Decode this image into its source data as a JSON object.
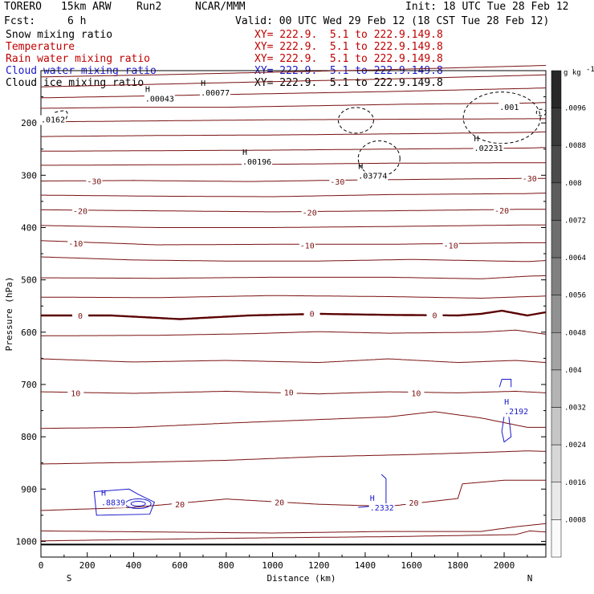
{
  "header": {
    "model": "TORERO",
    "resolution": "15km ARW",
    "run": "Run2",
    "source": "NCAR/MMM",
    "init": "Init: 18 UTC Tue 28 Feb 12",
    "fcst_label": "Fcst:",
    "fcst_value": "6 h",
    "valid": "Valid: 00 UTC Wed 29 Feb 12 (18 CST Tue 28 Feb 12)"
  },
  "legend": [
    {
      "name": "Snow mixing ratio",
      "xy": "XY= 222.9.  5.1 to 222.9.149.8",
      "name_color": "#000000",
      "xy_color": "#c00000"
    },
    {
      "name": "Temperature",
      "xy": "XY= 222.9.  5.1 to 222.9.149.8",
      "name_color": "#c00000",
      "xy_color": "#c00000"
    },
    {
      "name": "Rain water mixing ratio",
      "xy": "XY= 222.9.  5.1 to 222.9.149.8",
      "name_color": "#c00000",
      "xy_color": "#c00000"
    },
    {
      "name": "Cloud water mixing ratio",
      "xy": "XY= 222.9.  5.1 to 222.9.149.8",
      "name_color": "#1a1acc",
      "xy_color": "#1a1acc"
    },
    {
      "name": "Cloud ice mixing ratio",
      "xy": "XY= 222.9.  5.1 to 222.9.149.8",
      "name_color": "#000000",
      "xy_color": "#000000"
    }
  ],
  "colors": {
    "temperature": "#7a1010",
    "temperature_zero": "#5a0000",
    "cloud_water": "#1a1acc",
    "cloud_ice": "#000000",
    "axis": "#000000"
  },
  "chart_data": {
    "type": "contour",
    "xlabel": "Distance (km)",
    "ylabel": "Pressure (hPa)",
    "xlim": [
      0,
      2180
    ],
    "ylim": [
      1030,
      100
    ],
    "x_ticks": [
      0,
      200,
      400,
      600,
      800,
      1000,
      1200,
      1400,
      1600,
      1800,
      2000
    ],
    "y_ticks": [
      200,
      300,
      400,
      500,
      600,
      700,
      800,
      900,
      1000
    ],
    "x_end_left": "S",
    "x_end_right": "N",
    "temperature_isotherms": [
      {
        "pressure_profile": [
          [
            0,
            112
          ],
          [
            500,
            108
          ],
          [
            1000,
            103
          ],
          [
            1500,
            98
          ],
          [
            2100,
            91
          ],
          [
            2180,
            90
          ]
        ]
      },
      {
        "pressure_profile": [
          [
            0,
            131
          ],
          [
            500,
            126
          ],
          [
            1000,
            121
          ],
          [
            1500,
            116
          ],
          [
            2100,
            109
          ],
          [
            2180,
            108
          ]
        ]
      },
      {
        "pressure_profile": [
          [
            0,
            152
          ],
          [
            500,
            148
          ],
          [
            1000,
            144
          ],
          [
            1500,
            140
          ],
          [
            2100,
            134
          ],
          [
            2180,
            133
          ]
        ]
      },
      {
        "pressure_profile": [
          [
            0,
            172
          ],
          [
            400,
            170
          ],
          [
            800,
            170
          ],
          [
            1200,
            167
          ],
          [
            1600,
            164
          ],
          [
            2100,
            162
          ],
          [
            2180,
            161
          ]
        ]
      },
      {
        "pressure_profile": [
          [
            0,
            198
          ],
          [
            500,
            196
          ],
          [
            1000,
            194
          ],
          [
            1500,
            193
          ],
          [
            2100,
            192
          ],
          [
            2180,
            192
          ]
        ]
      },
      {
        "pressure_profile": [
          [
            0,
            226
          ],
          [
            500,
            224
          ],
          [
            1000,
            223
          ],
          [
            1500,
            221
          ],
          [
            2100,
            218
          ],
          [
            2180,
            217
          ]
        ]
      },
      {
        "pressure_profile": [
          [
            0,
            254
          ],
          [
            500,
            253
          ],
          [
            1000,
            252
          ],
          [
            1500,
            250
          ],
          [
            2100,
            248
          ],
          [
            2180,
            247
          ]
        ]
      },
      {
        "pressure_profile": [
          [
            0,
            281
          ],
          [
            500,
            280
          ],
          [
            1000,
            279
          ],
          [
            1500,
            277
          ],
          [
            2100,
            276
          ],
          [
            2180,
            276
          ]
        ]
      },
      {
        "pressure_profile": [
          [
            0,
            311
          ],
          [
            400,
            310
          ],
          [
            900,
            312
          ],
          [
            1200,
            310
          ],
          [
            1600,
            308
          ],
          [
            2100,
            306
          ],
          [
            2180,
            306
          ]
        ],
        "label": "-30",
        "label_at": [
          [
            230,
            311
          ],
          [
            1280,
            312
          ],
          [
            2110,
            306
          ]
        ]
      },
      {
        "pressure_profile": [
          [
            0,
            338
          ],
          [
            500,
            340
          ],
          [
            1000,
            341
          ],
          [
            1500,
            337
          ],
          [
            2100,
            335
          ],
          [
            2180,
            334
          ]
        ]
      },
      {
        "pressure_profile": [
          [
            0,
            366
          ],
          [
            500,
            368
          ],
          [
            1000,
            370
          ],
          [
            1500,
            368
          ],
          [
            2100,
            365
          ],
          [
            2180,
            365
          ]
        ],
        "label": "-20",
        "label_at": [
          [
            170,
            368
          ],
          [
            1160,
            371
          ],
          [
            1990,
            367
          ]
        ]
      },
      {
        "pressure_profile": [
          [
            0,
            396
          ],
          [
            500,
            400
          ],
          [
            1000,
            400
          ],
          [
            1500,
            398
          ],
          [
            2100,
            395
          ],
          [
            2180,
            395
          ]
        ]
      },
      {
        "pressure_profile": [
          [
            0,
            425
          ],
          [
            500,
            433
          ],
          [
            1000,
            432
          ],
          [
            1500,
            432
          ],
          [
            2100,
            429
          ],
          [
            2180,
            429
          ]
        ],
        "label": "-10",
        "label_at": [
          [
            150,
            430
          ],
          [
            1150,
            434
          ],
          [
            1770,
            434
          ]
        ]
      },
      {
        "pressure_profile": [
          [
            0,
            456
          ],
          [
            400,
            462
          ],
          [
            800,
            464
          ],
          [
            1200,
            464
          ],
          [
            1600,
            461
          ],
          [
            2100,
            465
          ],
          [
            2180,
            463
          ]
        ]
      },
      {
        "pressure_profile": [
          [
            0,
            496
          ],
          [
            500,
            497
          ],
          [
            1000,
            495
          ],
          [
            1500,
            495
          ],
          [
            1900,
            498
          ],
          [
            2100,
            493
          ],
          [
            2180,
            492
          ]
        ]
      },
      {
        "pressure_profile": [
          [
            0,
            533
          ],
          [
            500,
            534
          ],
          [
            1000,
            530
          ],
          [
            1500,
            532
          ],
          [
            1900,
            535
          ],
          [
            2100,
            532
          ],
          [
            2180,
            531
          ]
        ]
      },
      {
        "pressure_profile": [
          [
            0,
            568
          ],
          [
            300,
            568
          ],
          [
            600,
            575
          ],
          [
            900,
            568
          ],
          [
            1200,
            565
          ],
          [
            1500,
            567
          ],
          [
            1800,
            568
          ],
          [
            1900,
            565
          ],
          [
            1990,
            559
          ],
          [
            2100,
            568
          ],
          [
            2180,
            562
          ]
        ],
        "label": "0",
        "label_at": [
          [
            170,
            568
          ],
          [
            1170,
            564
          ],
          [
            1700,
            567
          ]
        ],
        "bold": true
      },
      {
        "pressure_profile": [
          [
            0,
            607
          ],
          [
            500,
            606
          ],
          [
            900,
            603
          ],
          [
            1200,
            599
          ],
          [
            1500,
            602
          ],
          [
            1900,
            600
          ],
          [
            2050,
            596
          ],
          [
            2180,
            604
          ]
        ]
      },
      {
        "pressure_profile": [
          [
            0,
            651
          ],
          [
            400,
            657
          ],
          [
            800,
            654
          ],
          [
            1200,
            658
          ],
          [
            1500,
            651
          ],
          [
            1800,
            658
          ],
          [
            2050,
            654
          ],
          [
            2180,
            658
          ]
        ]
      },
      {
        "pressure_profile": [
          [
            0,
            714
          ],
          [
            400,
            717
          ],
          [
            800,
            713
          ],
          [
            1200,
            718
          ],
          [
            1500,
            714
          ],
          [
            1800,
            716
          ],
          [
            2050,
            713
          ],
          [
            2180,
            716
          ]
        ],
        "label": "10",
        "label_at": [
          [
            150,
            716
          ],
          [
            1070,
            715
          ],
          [
            1620,
            716
          ]
        ]
      },
      {
        "pressure_profile": [
          [
            0,
            784
          ],
          [
            400,
            782
          ],
          [
            800,
            774
          ],
          [
            1200,
            767
          ],
          [
            1500,
            762
          ],
          [
            1700,
            752
          ],
          [
            1900,
            764
          ],
          [
            2100,
            782
          ],
          [
            2180,
            782
          ]
        ]
      },
      {
        "pressure_profile": [
          [
            0,
            852
          ],
          [
            400,
            849
          ],
          [
            800,
            845
          ],
          [
            1200,
            838
          ],
          [
            1600,
            834
          ],
          [
            1900,
            830
          ],
          [
            2100,
            827
          ],
          [
            2180,
            828
          ]
        ]
      },
      {
        "pressure_profile": [
          [
            0,
            941
          ],
          [
            400,
            935
          ],
          [
            800,
            919
          ],
          [
            1200,
            929
          ],
          [
            1500,
            933
          ],
          [
            1800,
            918
          ],
          [
            1820,
            890
          ],
          [
            2000,
            883
          ],
          [
            2180,
            883
          ]
        ],
        "label": "20",
        "label_at": [
          [
            600,
            929
          ],
          [
            1030,
            925
          ],
          [
            1610,
            926
          ]
        ]
      },
      {
        "pressure_profile": [
          [
            0,
            980
          ],
          [
            500,
            982
          ],
          [
            1000,
            984
          ],
          [
            1500,
            981
          ],
          [
            1900,
            981
          ],
          [
            2050,
            972
          ],
          [
            2180,
            966
          ]
        ]
      },
      {
        "pressure_profile": [
          [
            0,
            999
          ],
          [
            500,
            996
          ],
          [
            1000,
            993
          ],
          [
            1500,
            991
          ],
          [
            2050,
            987
          ],
          [
            2110,
            980
          ],
          [
            2180,
            982
          ]
        ]
      }
    ],
    "cloud_water_maxima": [
      {
        "label": "H",
        "value": ".8839",
        "x_km": 260,
        "p_hpa": 922
      },
      {
        "label": "H",
        "value": ".2332",
        "x_km": 1420,
        "p_hpa": 932
      },
      {
        "label": "H",
        "value": ".2192",
        "x_km": 2000,
        "p_hpa": 748
      }
    ],
    "cloud_ice_maxima": [
      {
        "label": "H",
        "value": ".00043",
        "x_km": 450,
        "p_hpa": 150
      },
      {
        "label": "H",
        "value": ".00077",
        "x_km": 690,
        "p_hpa": 138
      },
      {
        "label": "H",
        "value": ".00196",
        "x_km": 870,
        "p_hpa": 270
      },
      {
        "label": "H",
        "value": ".03774",
        "x_km": 1370,
        "p_hpa": 297
      },
      {
        "label": "H",
        "value": ".02231",
        "x_km": 1870,
        "p_hpa": 244
      },
      {
        "label": "",
        "value": ".001",
        "x_km": 1980,
        "p_hpa": 166
      },
      {
        "label": "",
        "value": ".0162",
        "x_km": 0,
        "p_hpa": 190
      }
    ],
    "colorbar": {
      "units": "g kg",
      "units_superscript": "-1",
      "ticks": [
        ".0096",
        ".0088",
        ".008",
        ".0072",
        ".0064",
        ".0056",
        ".0048",
        ".004",
        ".0032",
        ".0024",
        ".0016",
        ".0008"
      ]
    }
  }
}
